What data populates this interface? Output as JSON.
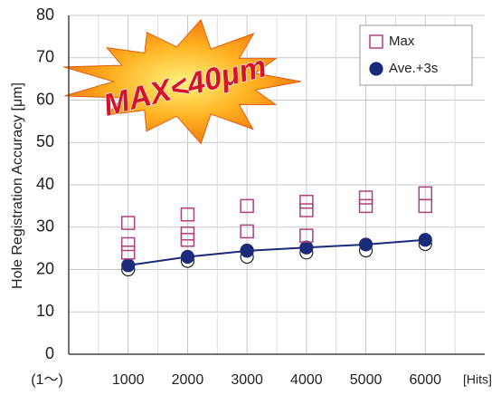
{
  "chart_data": {
    "type": "scatter",
    "y_label": "Hole Registration Accuracy [μm]",
    "x_start_label": "(1～)",
    "x_unit_label": "[Hits]",
    "annotation": "MAX<40μm",
    "xlim": [
      0,
      7000
    ],
    "xticks": [
      1000,
      2000,
      3000,
      4000,
      5000,
      6000
    ],
    "ylim": [
      0,
      80
    ],
    "yticks": [
      0,
      10,
      20,
      30,
      40,
      50,
      60,
      70,
      80
    ],
    "grid": true,
    "legend": "upper right",
    "series": [
      {
        "name": "Max",
        "color": "#b0407a",
        "marker": "square",
        "filled": false,
        "line": false,
        "x": [
          1000,
          1000,
          1000,
          2000,
          2000,
          2000,
          3000,
          3000,
          4000,
          4000,
          4000,
          5000,
          5000,
          6000,
          6000
        ],
        "values": [
          31,
          26,
          24,
          33,
          28.5,
          27,
          35,
          29,
          36,
          34,
          28,
          37,
          35,
          38,
          35
        ]
      },
      {
        "name": "Ave.+3s",
        "color": "#1c2a7a",
        "marker": "circle",
        "filled": true,
        "line": true,
        "x": [
          1000,
          2000,
          3000,
          4000,
          5000,
          6000
        ],
        "values": [
          21,
          23,
          24.4,
          25.2,
          25.9,
          27
        ]
      },
      {
        "color": "#222222",
        "marker": "circle",
        "filled": false,
        "line": false,
        "x": [
          1000,
          2000,
          3000,
          3000,
          4000,
          5000,
          6000
        ],
        "values": [
          20,
          22,
          23,
          24.5,
          24,
          24.5,
          26
        ]
      }
    ]
  }
}
